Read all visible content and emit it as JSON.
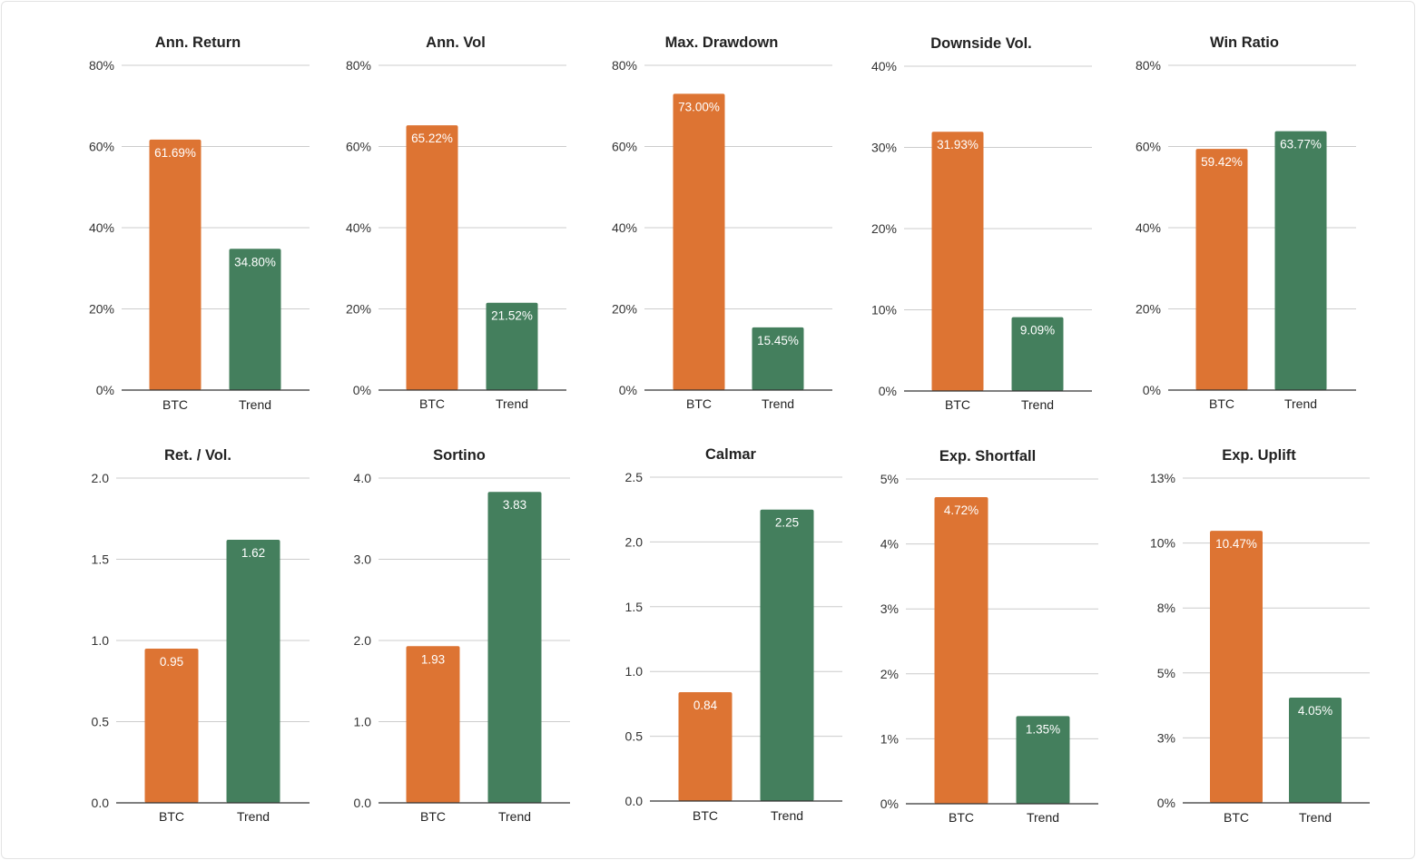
{
  "colors": {
    "BTC": "#DD7433",
    "Trend": "#447F5D"
  },
  "chart_data": [
    {
      "type": "bar",
      "title": "Ann. Return",
      "categories": [
        "BTC",
        "Trend"
      ],
      "values": [
        61.69,
        34.8
      ],
      "data_labels": [
        "61.69%",
        "34.80%"
      ],
      "ylim": [
        0,
        80
      ],
      "yticks": [
        "0%",
        "20%",
        "40%",
        "60%",
        "80%"
      ],
      "grid": true,
      "legend": "none"
    },
    {
      "type": "bar",
      "title": "Ann. Vol",
      "categories": [
        "BTC",
        "Trend"
      ],
      "values": [
        65.22,
        21.52
      ],
      "data_labels": [
        "65.22%",
        "21.52%"
      ],
      "ylim": [
        0,
        80
      ],
      "yticks": [
        "0%",
        "20%",
        "40%",
        "60%",
        "80%"
      ],
      "grid": true,
      "legend": "none"
    },
    {
      "type": "bar",
      "title": "Max. Drawdown",
      "categories": [
        "BTC",
        "Trend"
      ],
      "values": [
        73.0,
        15.45
      ],
      "data_labels": [
        "73.00%",
        "15.45%"
      ],
      "ylim": [
        0,
        80
      ],
      "yticks": [
        "0%",
        "20%",
        "40%",
        "60%",
        "80%"
      ],
      "grid": true,
      "legend": "none"
    },
    {
      "type": "bar",
      "title": "Downside Vol.",
      "categories": [
        "BTC",
        "Trend"
      ],
      "values": [
        31.93,
        9.09
      ],
      "data_labels": [
        "31.93%",
        "9.09%"
      ],
      "ylim": [
        0,
        40
      ],
      "yticks": [
        "0%",
        "10%",
        "20%",
        "30%",
        "40%"
      ],
      "grid": true,
      "legend": "none"
    },
    {
      "type": "bar",
      "title": "Win Ratio",
      "categories": [
        "BTC",
        "Trend"
      ],
      "values": [
        59.42,
        63.77
      ],
      "data_labels": [
        "59.42%",
        "63.77%"
      ],
      "ylim": [
        0,
        80
      ],
      "yticks": [
        "0%",
        "20%",
        "40%",
        "60%",
        "80%"
      ],
      "grid": true,
      "legend": "none"
    },
    {
      "type": "bar",
      "title": "Ret. / Vol.",
      "categories": [
        "BTC",
        "Trend"
      ],
      "values": [
        0.95,
        1.62
      ],
      "data_labels": [
        "0.95",
        "1.62"
      ],
      "ylim": [
        0,
        2
      ],
      "yticks": [
        "0.0",
        "0.5",
        "1.0",
        "1.5",
        "2.0"
      ],
      "grid": true,
      "legend": "none"
    },
    {
      "type": "bar",
      "title": "Sortino",
      "categories": [
        "BTC",
        "Trend"
      ],
      "values": [
        1.93,
        3.83
      ],
      "data_labels": [
        "1.93",
        "3.83"
      ],
      "ylim": [
        0,
        4
      ],
      "yticks": [
        "0.0",
        "1.0",
        "2.0",
        "3.0",
        "4.0"
      ],
      "grid": true,
      "legend": "none"
    },
    {
      "type": "bar",
      "title": "Calmar",
      "categories": [
        "BTC",
        "Trend"
      ],
      "values": [
        0.84,
        2.25
      ],
      "data_labels": [
        "0.84",
        "2.25"
      ],
      "ylim": [
        0,
        2.5
      ],
      "yticks": [
        "0.0",
        "0.5",
        "1.0",
        "1.5",
        "2.0",
        "2.5"
      ],
      "grid": true,
      "legend": "none"
    },
    {
      "type": "bar",
      "title": "Exp. Shortfall",
      "categories": [
        "BTC",
        "Trend"
      ],
      "values": [
        4.72,
        1.35
      ],
      "data_labels": [
        "4.72%",
        "1.35%"
      ],
      "ylim": [
        0,
        5
      ],
      "yticks": [
        "0%",
        "1%",
        "2%",
        "3%",
        "4%",
        "5%"
      ],
      "grid": true,
      "legend": "none"
    },
    {
      "type": "bar",
      "title": "Exp. Uplift",
      "categories": [
        "BTC",
        "Trend"
      ],
      "values": [
        10.47,
        4.05
      ],
      "data_labels": [
        "10.47%",
        "4.05%"
      ],
      "ylim": [
        0,
        12.5
      ],
      "yticks": [
        "0%",
        "3%",
        "5%",
        "8%",
        "10%",
        "13%"
      ],
      "grid": true,
      "legend": "none"
    }
  ]
}
